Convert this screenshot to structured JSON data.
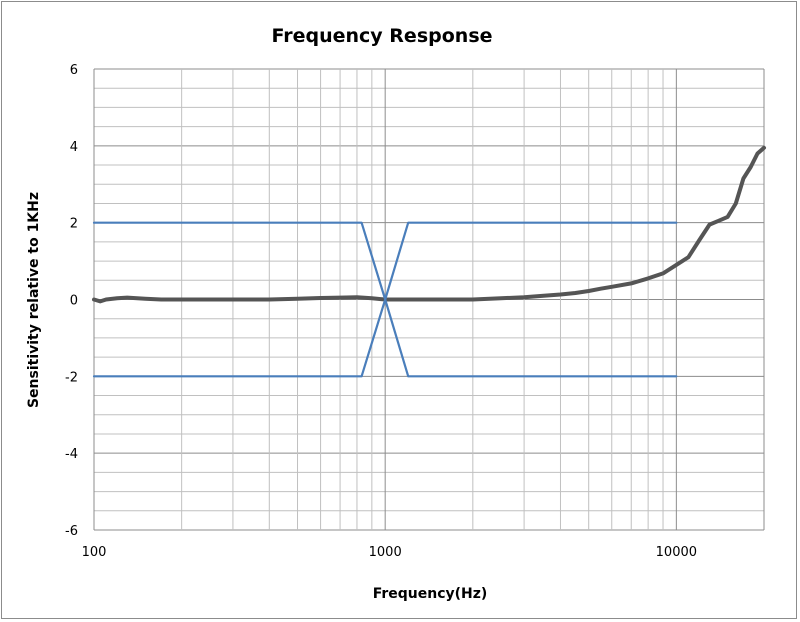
{
  "chart_data": {
    "type": "line",
    "title": "Frequency  Response",
    "xlabel": "Frequency(Hz)",
    "ylabel": "Sensitivity relative to 1KHz",
    "xscale": "log",
    "xlim": [
      100,
      20000
    ],
    "ylim": [
      -6,
      6
    ],
    "x_ticks": [
      100,
      1000,
      10000
    ],
    "x_tick_labels": [
      "100",
      "1000",
      "10000"
    ],
    "y_ticks": [
      -6,
      -4,
      -2,
      0,
      2,
      4,
      6
    ],
    "y_tick_labels": [
      "-6",
      "-4",
      "-2",
      "0",
      "2",
      "4",
      "6"
    ],
    "grid": true,
    "legend": "none",
    "colors": {
      "response": "#555555",
      "limits": "#4a7ebb",
      "grid": "#c0c0c0",
      "major_grid": "#8c8c8c"
    },
    "series": [
      {
        "role": "response",
        "x": [
          100,
          105,
          110,
          120,
          130,
          150,
          170,
          200,
          250,
          300,
          400,
          500,
          600,
          700,
          800,
          900,
          1000,
          1200,
          1500,
          2000,
          2500,
          3000,
          3500,
          4000,
          4500,
          5000,
          5500,
          6000,
          7000,
          8000,
          9000,
          10000,
          11000,
          12000,
          13000,
          14000,
          15000,
          16000,
          17000,
          18000,
          19000,
          20000
        ],
        "y": [
          0.0,
          -0.05,
          0.0,
          0.03,
          0.05,
          0.02,
          0.0,
          0.0,
          0.0,
          0.0,
          0.0,
          0.02,
          0.04,
          0.05,
          0.06,
          0.03,
          0.0,
          0.0,
          0.0,
          0.0,
          0.03,
          0.06,
          0.1,
          0.13,
          0.17,
          0.22,
          0.28,
          0.33,
          0.42,
          0.55,
          0.68,
          0.9,
          1.1,
          1.55,
          1.95,
          2.05,
          2.15,
          2.5,
          3.15,
          3.45,
          3.8,
          3.95
        ]
      },
      {
        "role": "upper-limit",
        "x": [
          100,
          830,
          1000,
          1200,
          10000
        ],
        "y": [
          2,
          2,
          0,
          2,
          2
        ]
      },
      {
        "role": "lower-limit",
        "x": [
          100,
          830,
          1000,
          1200,
          10000
        ],
        "y": [
          -2,
          -2,
          0,
          -2,
          -2
        ]
      }
    ]
  }
}
